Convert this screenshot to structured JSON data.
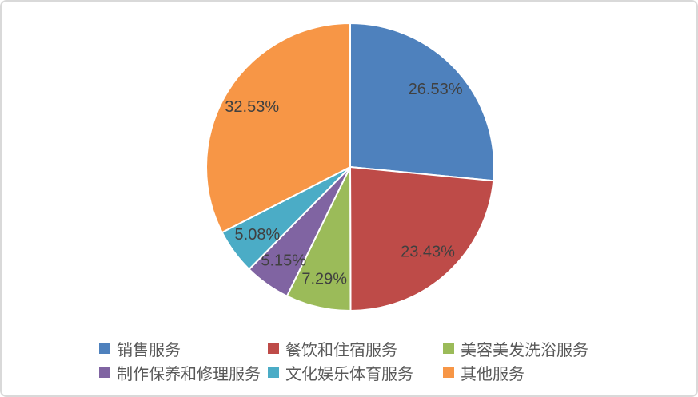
{
  "chart_data": {
    "type": "pie",
    "title": "",
    "categories": [
      "销售服务",
      "餐饮和住宿服务",
      "美容美发洗浴服务",
      "制作保养和修理服务",
      "文化娱乐体育服务",
      "其他服务"
    ],
    "values": [
      26.53,
      23.43,
      7.29,
      5.15,
      5.08,
      32.53
    ],
    "data_labels": [
      "26.53%",
      "23.43%",
      "7.29%",
      "5.15%",
      "5.08%",
      "32.53%"
    ],
    "colors": [
      "#4E81BD",
      "#BE4B48",
      "#9BBB59",
      "#8064A2",
      "#4BACC6",
      "#F79646"
    ],
    "slice_border_color": "#FFFFFF",
    "label_color": "#404040",
    "legend_text_color": "#595959",
    "frame_border_color": "#D9D9D9",
    "background_color": "#FFFFFF",
    "start_angle_deg": 0,
    "direction": "clockwise",
    "legend_position": "bottom",
    "legend_rows": 2
  }
}
